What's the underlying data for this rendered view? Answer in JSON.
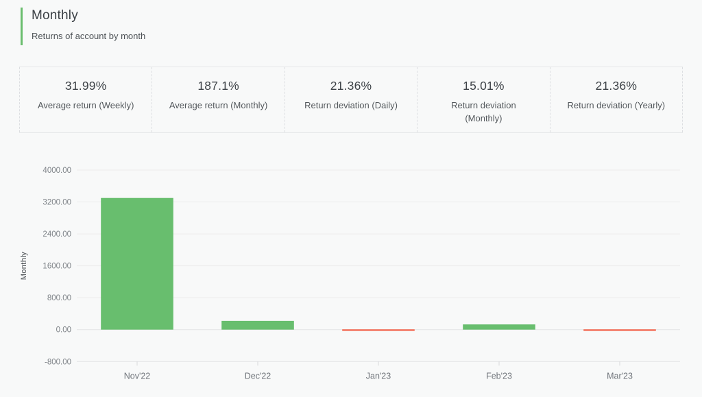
{
  "header": {
    "title": "Monthly",
    "subtitle": "Returns of account by month"
  },
  "stats": {
    "items": [
      {
        "value": "31.99%",
        "label": "Average return (Weekly)"
      },
      {
        "value": "187.1%",
        "label": "Average return (Monthly)"
      },
      {
        "value": "21.36%",
        "label": "Return deviation (Daily)"
      },
      {
        "value": "15.01%",
        "label": "Return deviation (Monthly)"
      },
      {
        "value": "21.36%",
        "label": "Return deviation (Yearly)"
      }
    ]
  },
  "chart_data": {
    "type": "bar",
    "title": "",
    "categories": [
      "Nov'22",
      "Dec'22",
      "Jan'23",
      "Feb'23",
      "Mar'23"
    ],
    "values": [
      3300,
      220,
      -20,
      130,
      -40
    ],
    "xlabel": "",
    "ylabel": "Monthly",
    "ylim": [
      -800,
      4000
    ],
    "ytick_step": 800,
    "ytick_labels": [
      "4000.00",
      "3200.00",
      "2400.00",
      "1600.00",
      "800.00",
      "0.00",
      "-800.00"
    ],
    "grid": true,
    "legend": "none",
    "colors": {
      "positive": "#68be6e",
      "negative": "#f4715c"
    }
  },
  "colors": {
    "accent_green": "#6abd6e",
    "bar_positive": "#68be6e",
    "bar_negative": "#f4715c",
    "grid_line": "#ececec",
    "zero_line": "#e3e4e6",
    "axis_text": "#7d8287",
    "category_text": "#6f747a",
    "background": "#f8f9f9"
  }
}
